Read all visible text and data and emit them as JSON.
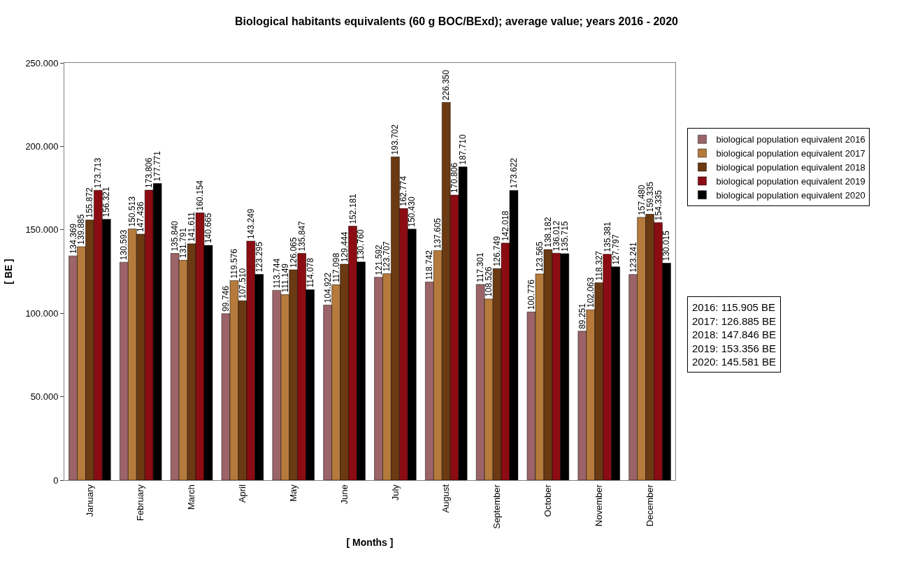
{
  "chart_data": {
    "type": "bar",
    "title": "Biological habitants equivalents (60 g BOC/BExd); average value; years 2016 - 2020",
    "xlabel": "[ Months ]",
    "ylabel": "[ BE ]",
    "categories": [
      "January",
      "February",
      "March",
      "April",
      "May",
      "June",
      "July",
      "August",
      "September",
      "October",
      "November",
      "December"
    ],
    "series": [
      {
        "name": "biological population equivalent 2016",
        "color": "#9c6468",
        "values": [
          134369,
          130593,
          135840,
          99746,
          113744,
          104922,
          121592,
          118742,
          117301,
          100776,
          89251,
          123241
        ],
        "value_labels": [
          "134.369",
          "130.593",
          "135.840",
          "99.746",
          "113.744",
          "104.922",
          "121.592",
          "118.742",
          "117.301",
          "100.776",
          "89.251",
          "123.241"
        ]
      },
      {
        "name": "biological population equivalent 2017",
        "color": "#b57a3c",
        "values": [
          139885,
          150513,
          131791,
          119576,
          111149,
          117098,
          123707,
          137605,
          108526,
          123565,
          102063,
          157480
        ],
        "value_labels": [
          "139.885",
          "150.513",
          "131.791",
          "119.576",
          "111.149",
          "117.098",
          "123.707",
          "137.605",
          "108.526",
          "123.565",
          "102.063",
          "157.480"
        ]
      },
      {
        "name": "biological population equivalent 2018",
        "color": "#6b3a12",
        "values": [
          155872,
          147436,
          141611,
          107510,
          126065,
          129444,
          193702,
          226350,
          126749,
          138182,
          118327,
          159335
        ],
        "value_labels": [
          "155.872",
          "147.436",
          "141.611",
          "107.510",
          "126.065",
          "129.444",
          "193.702",
          "226.350",
          "126.749",
          "138.182",
          "118.327",
          "159.335"
        ]
      },
      {
        "name": "biological population equivalent 2019",
        "color": "#8b0c12",
        "values": [
          173713,
          173806,
          160154,
          143249,
          135847,
          152181,
          162774,
          170806,
          142018,
          136012,
          135381,
          154335
        ],
        "value_labels": [
          "173.713",
          "173.806",
          "160.154",
          "143.249",
          "135.847",
          "152.181",
          "162.774",
          "170.806",
          "142.018",
          "136.012",
          "135.381",
          "154.335"
        ]
      },
      {
        "name": "biological population equivalent 2020",
        "color": "#000000",
        "values": [
          156321,
          177771,
          140665,
          123295,
          114078,
          130760,
          150430,
          187710,
          173622,
          135715,
          127797,
          130015
        ],
        "value_labels": [
          "156.321",
          "177.771",
          "140.665",
          "123.295",
          "114.078",
          "130.760",
          "150.430",
          "187.710",
          "173.622",
          "135.715",
          "127.797",
          "130.015"
        ]
      }
    ],
    "ylim": [
      0,
      250000
    ],
    "yticks": [
      {
        "value": 0,
        "label": "0"
      },
      {
        "value": 50000,
        "label": "50.000"
      },
      {
        "value": 100000,
        "label": "100.000"
      },
      {
        "value": 150000,
        "label": "150.000"
      },
      {
        "value": 200000,
        "label": "200.000"
      },
      {
        "value": 250000,
        "label": "250.000"
      }
    ],
    "grid": false,
    "legend": "right",
    "annotations": [
      "2016: 115.905 BE",
      "2017: 126.885 BE",
      "2018: 147.846 BE",
      "2019: 153.356 BE",
      "2020: 145.581 BE"
    ]
  }
}
